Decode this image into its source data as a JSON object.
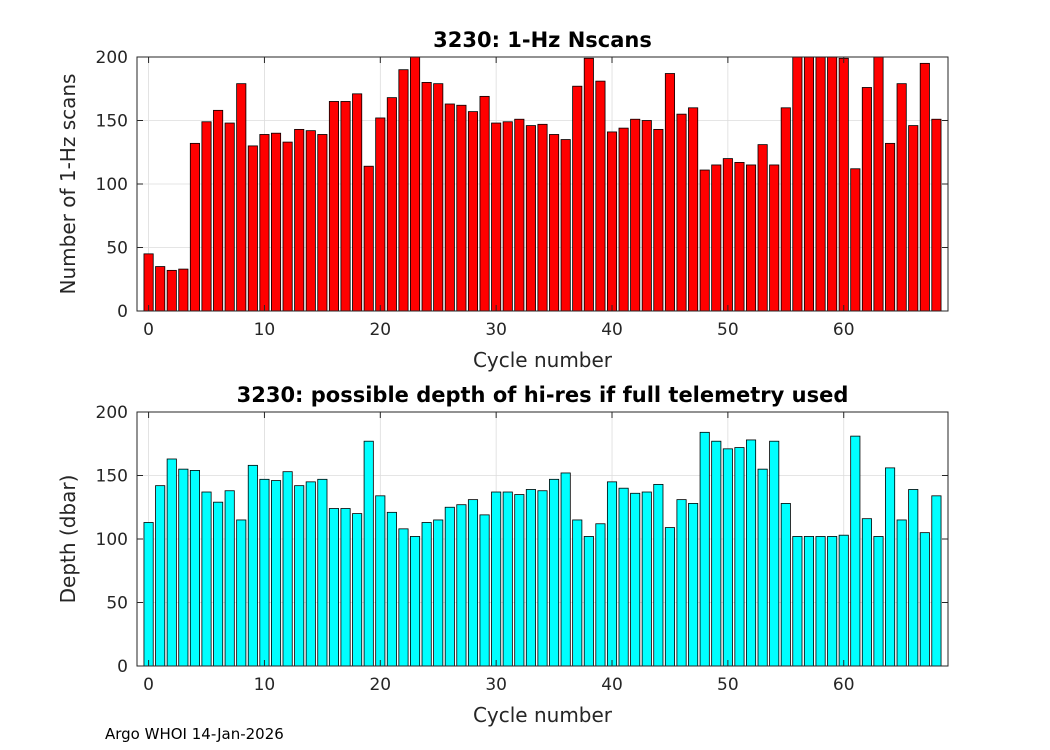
{
  "chart_data": [
    {
      "type": "bar",
      "title": "3230: 1-Hz Nscans",
      "xlabel": "Cycle number",
      "ylabel": "Number of 1-Hz scans",
      "xlim": [
        -1,
        69
      ],
      "ylim": [
        0,
        200
      ],
      "xticks": [
        0,
        10,
        20,
        30,
        40,
        50,
        60
      ],
      "yticks": [
        0,
        50,
        100,
        150,
        200
      ],
      "grid": true,
      "bar_color": "#ff0000",
      "x": [
        0,
        1,
        2,
        3,
        4,
        5,
        6,
        7,
        8,
        9,
        10,
        11,
        12,
        13,
        14,
        15,
        16,
        17,
        18,
        19,
        20,
        21,
        22,
        23,
        24,
        25,
        26,
        27,
        28,
        29,
        30,
        31,
        32,
        33,
        34,
        35,
        36,
        37,
        38,
        39,
        40,
        41,
        42,
        43,
        44,
        45,
        46,
        47,
        48,
        49,
        50,
        51,
        52,
        53,
        54,
        55,
        56,
        57,
        58,
        59,
        60,
        61,
        62,
        63,
        64,
        65,
        66,
        67,
        68
      ],
      "values": [
        45,
        35,
        32,
        33,
        132,
        149,
        158,
        148,
        179,
        130,
        139,
        140,
        133,
        143,
        142,
        139,
        165,
        165,
        171,
        114,
        152,
        168,
        190,
        200,
        180,
        179,
        163,
        162,
        157,
        169,
        148,
        149,
        151,
        146,
        147,
        139,
        135,
        177,
        199,
        181,
        141,
        144,
        151,
        150,
        143,
        187,
        155,
        160,
        111,
        115,
        120,
        117,
        115,
        131,
        115,
        160,
        200,
        200,
        200,
        200,
        199,
        112,
        176,
        200,
        132,
        179,
        146,
        195,
        151
      ]
    },
    {
      "type": "bar",
      "title": "3230: possible depth of hi-res if full telemetry used",
      "xlabel": "Cycle number",
      "ylabel": "Depth (dbar)",
      "xlim": [
        -1,
        69
      ],
      "ylim": [
        0,
        200
      ],
      "xticks": [
        0,
        10,
        20,
        30,
        40,
        50,
        60
      ],
      "yticks": [
        0,
        50,
        100,
        150,
        200
      ],
      "grid": true,
      "bar_color": "#00ffff",
      "x": [
        0,
        1,
        2,
        3,
        4,
        5,
        6,
        7,
        8,
        9,
        10,
        11,
        12,
        13,
        14,
        15,
        16,
        17,
        18,
        19,
        20,
        21,
        22,
        23,
        24,
        25,
        26,
        27,
        28,
        29,
        30,
        31,
        32,
        33,
        34,
        35,
        36,
        37,
        38,
        39,
        40,
        41,
        42,
        43,
        44,
        45,
        46,
        47,
        48,
        49,
        50,
        51,
        52,
        53,
        54,
        55,
        56,
        57,
        58,
        59,
        60,
        61,
        62,
        63,
        64,
        65,
        66,
        67,
        68
      ],
      "values": [
        113,
        142,
        163,
        155,
        154,
        137,
        129,
        138,
        115,
        158,
        147,
        146,
        153,
        142,
        145,
        147,
        124,
        124,
        120,
        177,
        134,
        121,
        108,
        102,
        113,
        115,
        125,
        127,
        131,
        119,
        137,
        137,
        135,
        139,
        138,
        147,
        152,
        115,
        102,
        112,
        145,
        140,
        136,
        137,
        143,
        109,
        131,
        128,
        184,
        177,
        171,
        172,
        178,
        155,
        177,
        128,
        102,
        102,
        102,
        102,
        103,
        181,
        116,
        102,
        156,
        115,
        139,
        105,
        134
      ]
    }
  ],
  "footer": "Argo WHOI 14-Jan-2026"
}
